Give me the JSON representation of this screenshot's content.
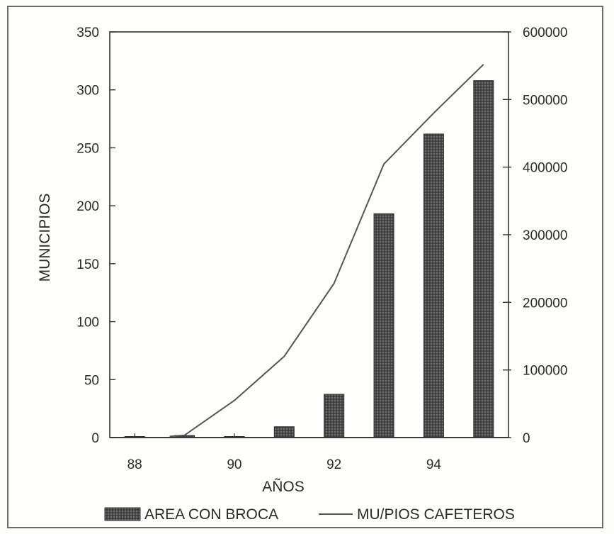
{
  "chart_data": {
    "type": "bar",
    "title": "",
    "xlabel": "AÑOS",
    "ylabel": "MUNICIPIOS",
    "y2label": "",
    "x_tick_labels": [
      "88",
      "90",
      "92",
      "94"
    ],
    "xlim": [
      87.5,
      95.5
    ],
    "y_left_ticks": [
      "0",
      "50",
      "100",
      "150",
      "200",
      "250",
      "300",
      "350"
    ],
    "ylim_left": [
      0,
      350
    ],
    "y_right_ticks": [
      "0",
      "100000",
      "200000",
      "300000",
      "400000",
      "500000",
      "600000"
    ],
    "ylim_right": [
      0,
      600000
    ],
    "grid": false,
    "legend_position": "bottom",
    "series": [
      {
        "name": "AREA CON BROCA",
        "kind": "bar",
        "axis": "right",
        "color": "#4a4a4a",
        "x": [
          88,
          89,
          90,
          91,
          92,
          93,
          94,
          95
        ],
        "values": [
          0,
          3000,
          0,
          16000,
          64000,
          331000,
          449000,
          528000
        ]
      },
      {
        "name": "MU/PIOS CAFETEROS",
        "kind": "line",
        "axis": "left",
        "color": "#555555",
        "x": [
          88.7,
          89,
          90,
          91,
          92,
          93,
          94,
          95
        ],
        "values": [
          1,
          2,
          32,
          70,
          133,
          236,
          280,
          322
        ]
      }
    ]
  }
}
